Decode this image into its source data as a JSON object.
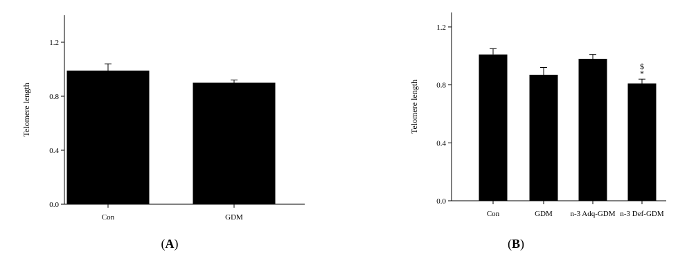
{
  "chart_data": [
    {
      "type": "bar",
      "panel": "A",
      "ylabel": "Telomere length",
      "ylim": [
        0,
        1.4
      ],
      "yticks": [
        "0.0",
        "0.4",
        "0.8",
        "1.2"
      ],
      "categories": [
        "Con",
        "GDM"
      ],
      "values": [
        0.99,
        0.9
      ],
      "errors": [
        0.05,
        0.02
      ],
      "annotations": [
        "",
        ""
      ]
    },
    {
      "type": "bar",
      "panel": "B",
      "ylabel": "Telomere length",
      "ylim": [
        0,
        1.3
      ],
      "yticks": [
        "0.0",
        "0.4",
        "0.8",
        "1.2"
      ],
      "categories": [
        "Con",
        "GDM",
        "n-3 Adq-GDM",
        "n-3 Def-GDM"
      ],
      "values": [
        1.01,
        0.87,
        0.98,
        0.81
      ],
      "errors": [
        0.04,
        0.05,
        0.03,
        0.03
      ],
      "annotations": [
        "",
        "",
        "",
        "$\n*"
      ]
    }
  ],
  "panel_labels": {
    "a": {
      "open": "(",
      "letter": "A",
      "close": ")"
    },
    "b": {
      "open": "(",
      "letter": "B",
      "close": ")"
    }
  }
}
